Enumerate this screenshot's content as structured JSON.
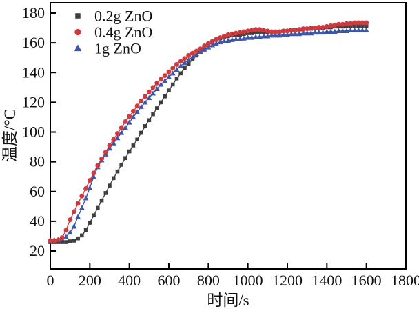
{
  "figure": {
    "background": "#ffffff",
    "axis_color": "#000000"
  },
  "chart_data": {
    "type": "scatter",
    "title": "",
    "xlabel": "时间/s",
    "ylabel": "温度/°C",
    "xlim": [
      0,
      1800
    ],
    "ylim": [
      8,
      187
    ],
    "x_ticks": [
      0,
      200,
      400,
      600,
      800,
      1000,
      1200,
      1400,
      1600,
      1800
    ],
    "y_ticks": [
      20,
      40,
      60,
      80,
      100,
      120,
      140,
      160,
      180
    ],
    "grid": false,
    "legend_position": "top-left",
    "x": [
      0,
      20,
      40,
      60,
      80,
      100,
      120,
      140,
      160,
      180,
      200,
      220,
      240,
      260,
      280,
      300,
      320,
      340,
      360,
      380,
      400,
      420,
      440,
      460,
      480,
      500,
      520,
      540,
      560,
      580,
      600,
      620,
      640,
      660,
      680,
      700,
      720,
      740,
      760,
      780,
      800,
      820,
      840,
      860,
      880,
      900,
      920,
      940,
      960,
      980,
      1000,
      1020,
      1040,
      1060,
      1080,
      1100,
      1120,
      1140,
      1160,
      1180,
      1200,
      1220,
      1240,
      1260,
      1280,
      1300,
      1320,
      1340,
      1360,
      1380,
      1400,
      1420,
      1440,
      1460,
      1480,
      1500,
      1520,
      1540,
      1560,
      1580,
      1600
    ],
    "draw_order": [
      0,
      2,
      1
    ],
    "series": [
      {
        "name": "0.2g ZnO",
        "marker": "square",
        "color": "#3f3f41",
        "values": [
          26,
          26,
          26,
          26,
          26,
          26.5,
          27,
          28.5,
          30.5,
          34,
          39,
          44,
          49,
          54,
          59,
          64,
          69,
          73.5,
          78,
          82.5,
          87,
          91,
          95,
          99.5,
          104,
          108,
          112,
          116,
          120,
          124,
          128,
          132,
          136,
          139.5,
          143,
          146,
          149,
          151.5,
          154,
          156.5,
          158.5,
          160.5,
          162,
          163,
          164,
          164.5,
          165,
          165.5,
          165.5,
          166,
          166.5,
          166.5,
          167,
          167,
          167,
          167,
          167.5,
          167.5,
          167.5,
          168,
          168,
          168.5,
          168.5,
          169,
          169,
          169.5,
          169.5,
          170,
          170,
          170,
          170.5,
          170.5,
          171,
          171,
          171,
          171.5,
          171.5,
          171.5,
          171.5,
          171.5,
          171.5
        ]
      },
      {
        "name": "0.4g ZnO",
        "marker": "circle",
        "color": "#d03a3e",
        "values": [
          27,
          27,
          27.5,
          29,
          34,
          41,
          46.5,
          52,
          57,
          62,
          67.5,
          72.5,
          77.5,
          82,
          86.5,
          91,
          95,
          99,
          103,
          107,
          110.5,
          114,
          117.5,
          121,
          124,
          127,
          130,
          133,
          135.5,
          138,
          140.5,
          143,
          145.5,
          147.5,
          149.5,
          151.5,
          153,
          154.5,
          156,
          158,
          159.5,
          161,
          162.5,
          163.5,
          164.5,
          165.5,
          166,
          166.5,
          167,
          167.5,
          168,
          168.5,
          169,
          169,
          168.5,
          168,
          167.5,
          167.5,
          167.5,
          168,
          168,
          168.5,
          168.5,
          169,
          169.5,
          169.5,
          170,
          170,
          170.5,
          170.5,
          171,
          171.5,
          172,
          172.5,
          172.5,
          173,
          173,
          173.5,
          173.5,
          173.5,
          173.5
        ]
      },
      {
        "name": "1g ZnO",
        "marker": "triangle",
        "color": "#3e56a6",
        "values": [
          27.5,
          27.5,
          27.5,
          28,
          29.5,
          32.5,
          36.5,
          43,
          49,
          55.5,
          62.5,
          70,
          76.5,
          81,
          85,
          89,
          92.5,
          96,
          99.5,
          103,
          106.5,
          110,
          113.5,
          117,
          120,
          123,
          126,
          129,
          132,
          134.5,
          137,
          139.5,
          142,
          144.5,
          146.5,
          148.5,
          150.5,
          152.5,
          154,
          155.5,
          157,
          158.5,
          159.5,
          160.5,
          161,
          161.5,
          162,
          162.5,
          162.5,
          163,
          163.5,
          163.5,
          164,
          164,
          164.5,
          164.5,
          165,
          165,
          165,
          165.5,
          165.5,
          166,
          166,
          166,
          166.5,
          166.5,
          166.5,
          167,
          167,
          167,
          167.5,
          167.5,
          167.5,
          168,
          168,
          168,
          168.5,
          168.5,
          168.5,
          168.5,
          168.5
        ]
      }
    ]
  }
}
